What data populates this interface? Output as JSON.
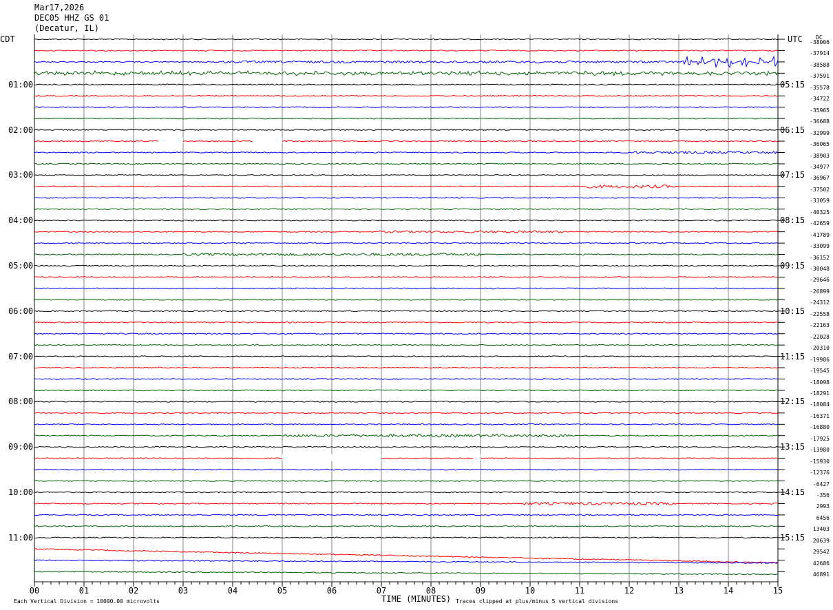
{
  "header": {
    "date": "Mar17,2026",
    "station": "DEC05 HHZ GS 01",
    "location": "(Decatur, IL)"
  },
  "left_zone": "CDT",
  "right_zone": "UTC",
  "dc_label": "DC",
  "footer": {
    "scale_note": "Each Vertical Division = 10000.00 microvolts",
    "clip_note": "Traces clipped at plus/minus 5 vertical divisions"
  },
  "colors": {
    "black": "#000000",
    "red": "#ff0000",
    "blue": "#0000ff",
    "green": "#006400",
    "grid": "#808080"
  },
  "chart_data": {
    "type": "line",
    "title": "",
    "xlabel": "TIME (MINUTES)",
    "xlim": [
      0,
      15
    ],
    "x_ticks": [
      "00",
      "01",
      "02",
      "03",
      "04",
      "05",
      "06",
      "07",
      "08",
      "09",
      "10",
      "11",
      "12",
      "13",
      "14",
      "15"
    ],
    "rows_per_hour": 4,
    "minutes_per_row": 15,
    "left_hour_labels": [
      "01:00",
      "02:00",
      "03:00",
      "04:00",
      "05:00",
      "06:00",
      "07:00",
      "08:00",
      "09:00",
      "10:00",
      "11:00"
    ],
    "right_hour_labels": [
      "05:15",
      "06:15",
      "07:15",
      "08:15",
      "09:15",
      "10:15",
      "11:15",
      "12:15",
      "13:15",
      "14:15",
      "15:15"
    ],
    "trace_colors": [
      "black",
      "red",
      "blue",
      "green"
    ],
    "trace_dc_offsets": [
      -38006,
      -37914,
      -38588,
      -37591,
      -35578,
      -34722,
      -35965,
      -36688,
      -32999,
      -36065,
      -38903,
      -34977,
      -36967,
      -37502,
      -33059,
      -40325,
      -42659,
      -41789,
      -33099,
      -36152,
      -30048,
      -29646,
      -26899,
      -24312,
      -22558,
      -22163,
      -22028,
      -20310,
      -19986,
      -19545,
      -18098,
      -18291,
      -18084,
      -16371,
      -16880,
      -17925,
      -13980,
      -15930,
      -12376,
      -6427,
      -356,
      2993,
      6456,
      13403,
      20639,
      29542,
      42686,
      46891
    ]
  }
}
